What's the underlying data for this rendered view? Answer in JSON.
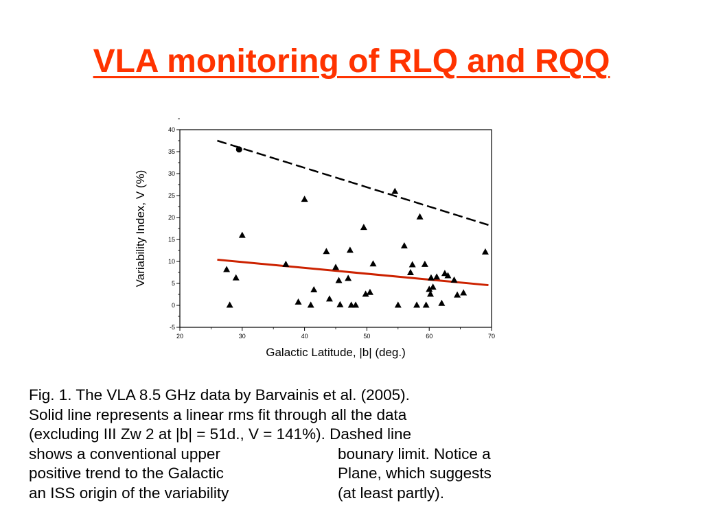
{
  "slide": {
    "title": "VLA monitoring of RLQ and RQQ",
    "title_color": "#ff3300"
  },
  "chart_data": {
    "type": "scatter",
    "xlabel": "Galactic Latitude, |b| (deg.)",
    "ylabel": "Variability Index, V (%)",
    "xlim": [
      20,
      70
    ],
    "ylim": [
      -5,
      40
    ],
    "xticks": [
      "20",
      "30",
      "40",
      "50",
      "60",
      "70"
    ],
    "yticks": [
      "-5",
      "0",
      "5",
      "10",
      "15",
      "20",
      "25",
      "30",
      "35",
      "40"
    ],
    "grid": false,
    "points": [
      {
        "x": 29.5,
        "y": 35.5,
        "marker": "circle"
      },
      {
        "x": 27.5,
        "y": 8.2
      },
      {
        "x": 28.0,
        "y": 0.1
      },
      {
        "x": 29.0,
        "y": 6.3
      },
      {
        "x": 30.0,
        "y": 16.0
      },
      {
        "x": 37.0,
        "y": 9.4
      },
      {
        "x": 39.0,
        "y": 0.8
      },
      {
        "x": 40.0,
        "y": 24.2
      },
      {
        "x": 41.0,
        "y": 0.1
      },
      {
        "x": 41.5,
        "y": 3.6
      },
      {
        "x": 43.5,
        "y": 12.3
      },
      {
        "x": 44.0,
        "y": 1.5
      },
      {
        "x": 45.0,
        "y": 8.7
      },
      {
        "x": 45.5,
        "y": 5.7
      },
      {
        "x": 45.7,
        "y": 0.2
      },
      {
        "x": 47.0,
        "y": 6.2
      },
      {
        "x": 47.3,
        "y": 12.6
      },
      {
        "x": 47.5,
        "y": 0.1
      },
      {
        "x": 48.2,
        "y": 0.1
      },
      {
        "x": 49.5,
        "y": 17.8
      },
      {
        "x": 49.8,
        "y": 2.6
      },
      {
        "x": 50.5,
        "y": 3.0
      },
      {
        "x": 51.0,
        "y": 9.5
      },
      {
        "x": 54.5,
        "y": 26.0
      },
      {
        "x": 55.0,
        "y": 0.1
      },
      {
        "x": 56.0,
        "y": 13.6
      },
      {
        "x": 57.0,
        "y": 7.5
      },
      {
        "x": 57.3,
        "y": 9.3
      },
      {
        "x": 58.0,
        "y": 0.1
      },
      {
        "x": 58.5,
        "y": 20.2
      },
      {
        "x": 59.3,
        "y": 9.4
      },
      {
        "x": 59.5,
        "y": 0.1
      },
      {
        "x": 60.0,
        "y": 3.7
      },
      {
        "x": 60.2,
        "y": 2.6
      },
      {
        "x": 60.3,
        "y": 6.3
      },
      {
        "x": 60.6,
        "y": 4.2
      },
      {
        "x": 61.2,
        "y": 6.5
      },
      {
        "x": 62.0,
        "y": 0.5
      },
      {
        "x": 62.5,
        "y": 7.3
      },
      {
        "x": 63.0,
        "y": 6.8
      },
      {
        "x": 64.0,
        "y": 5.8
      },
      {
        "x": 64.5,
        "y": 2.4
      },
      {
        "x": 65.5,
        "y": 2.9
      },
      {
        "x": 69.0,
        "y": 12.2
      }
    ],
    "lines": [
      {
        "style": "dashed",
        "color": "#000000",
        "x": [
          26,
          69.5
        ],
        "y": [
          37.5,
          18.3
        ]
      },
      {
        "style": "solid",
        "color": "#cc2200",
        "x": [
          26,
          69.5
        ],
        "y": [
          10.4,
          4.6
        ]
      }
    ]
  },
  "caption": {
    "lines": [
      "Fig. 1. The VLA 8.5 GHz data by Barvainis et al. (2005).",
      "Solid line represents a linear rms fit through all the data",
      "(excluding III Zw 2 at |b| = 51d., V = 141%). Dashed line"
    ],
    "left_lines": [
      "shows a conventional upper",
      "positive trend to the Galactic",
      "an ISS origin of the variability"
    ],
    "right_lines": [
      "bounary limit.  Notice a",
      "Plane, which suggests",
      "(at least partly)."
    ]
  }
}
